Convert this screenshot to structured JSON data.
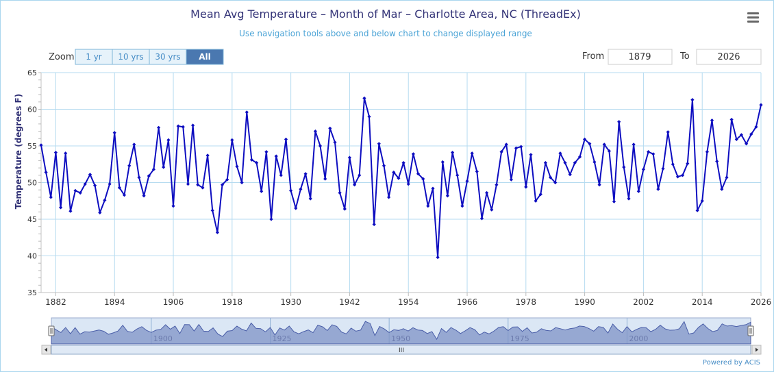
{
  "colors": {
    "series": "#0d0dc0",
    "accent": "#4a8fc7",
    "grid": "#b5dbf0",
    "title": "#333377",
    "subtitle": "#4aa3d6"
  },
  "menu": {
    "icon": "hamburger-menu-icon"
  },
  "chart_data": {
    "type": "line",
    "title": "Mean Avg Temperature – Month of Mar – Charlotte Area, NC (ThreadEx)",
    "subtitle": "Use navigation tools above and below chart to change displayed range",
    "ylabel": "Temperature (degrees F)",
    "xlabel": "",
    "xlim": [
      1879,
      2026
    ],
    "ylim": [
      35,
      65
    ],
    "grid": true,
    "legend": "none",
    "x_ticks": [
      "1882",
      "1894",
      "1906",
      "1918",
      "1930",
      "1942",
      "1954",
      "1966",
      "1978",
      "1990",
      "2002",
      "2014",
      "2026"
    ],
    "y_ticks": [
      "35",
      "40",
      "45",
      "50",
      "55",
      "60",
      "65"
    ],
    "series": [
      {
        "start_year": 1879,
        "values": [
          55.1,
          51.4,
          48.0,
          54.1,
          46.6,
          54.0,
          46.1,
          48.9,
          48.6,
          49.8,
          51.1,
          49.6,
          45.9,
          47.6,
          49.8,
          56.8,
          49.3,
          48.3,
          52.3,
          55.2,
          50.7,
          48.2,
          50.9,
          51.8,
          57.5,
          52.1,
          55.8,
          46.8,
          57.7,
          57.6,
          49.8,
          57.8,
          49.7,
          49.3,
          53.7,
          46.2,
          43.2,
          49.7,
          50.4,
          55.8,
          52.2,
          50.0,
          59.6,
          53.1,
          52.7,
          48.8,
          54.2,
          45.0,
          53.6,
          51.0,
          55.9,
          48.9,
          46.5,
          49.1,
          51.2,
          47.8,
          57.0,
          55.0,
          50.5,
          57.4,
          55.5,
          48.6,
          46.4,
          53.4,
          49.7,
          51.0,
          61.5,
          59.0,
          44.3,
          55.3,
          52.3,
          48.0,
          51.4,
          50.6,
          52.7,
          49.8,
          53.9,
          51.2,
          50.5,
          46.8,
          49.2,
          39.8,
          52.8,
          48.2,
          54.1,
          51.0,
          46.8,
          50.2,
          54.0,
          51.5,
          45.1,
          48.6,
          46.3,
          49.7,
          54.2,
          55.2,
          50.4,
          54.7,
          54.9,
          49.4,
          53.8,
          47.5,
          48.4,
          52.7,
          50.7,
          50.0,
          54.0,
          52.7,
          51.1,
          52.7,
          53.5,
          55.9,
          55.3,
          52.8,
          49.7,
          55.2,
          54.3,
          47.4,
          58.3,
          52.1,
          47.8,
          55.2,
          48.8,
          51.8,
          54.2,
          53.9,
          49.1,
          51.9,
          56.9,
          52.5,
          50.8,
          51.0,
          52.6,
          61.3,
          46.2,
          47.5,
          54.2,
          58.5,
          52.9,
          49.1,
          50.7,
          58.6,
          55.9,
          56.5,
          55.3,
          56.6,
          57.6,
          60.6
        ]
      }
    ]
  },
  "controls": {
    "zoom_label": "Zoom",
    "zoom_buttons": [
      {
        "label": "1 yr",
        "active": false
      },
      {
        "label": "10 yrs",
        "active": false
      },
      {
        "label": "30 yrs",
        "active": false
      },
      {
        "label": "All",
        "active": true
      }
    ],
    "from_label": "From",
    "from_value": "1879",
    "to_label": "To",
    "to_value": "2026"
  },
  "navigator": {
    "ticks": [
      "1900",
      "1925",
      "1950",
      "1975",
      "2000"
    ],
    "scroll_grip": "III"
  },
  "credits": "Powered by ACIS"
}
